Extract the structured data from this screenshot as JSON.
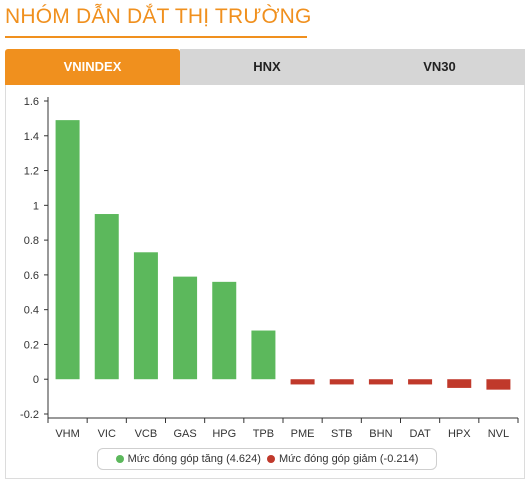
{
  "title": "NHÓM DẪN DẮT THỊ TRƯỜNG",
  "tabs": [
    {
      "label": "VNINDEX",
      "active": true
    },
    {
      "label": "HNX",
      "active": false
    },
    {
      "label": "VN30",
      "active": false
    }
  ],
  "colors": {
    "accent": "#f0901e",
    "positive": "#5cb85c",
    "negative": "#c0392b",
    "tab_inactive": "#d6d6d6"
  },
  "chart_data": {
    "type": "bar",
    "categories": [
      "VHM",
      "VIC",
      "VCB",
      "GAS",
      "HPG",
      "TPB",
      "PME",
      "STB",
      "BHN",
      "DAT",
      "HPX",
      "NVL"
    ],
    "values": [
      1.49,
      0.95,
      0.73,
      0.59,
      0.56,
      0.28,
      -0.03,
      -0.03,
      -0.03,
      -0.03,
      -0.05,
      -0.06
    ],
    "ylim": [
      -0.2,
      1.6
    ],
    "yticks": [
      "1.6",
      "1.4",
      "1.2",
      "1",
      "0.8",
      "0.6",
      "0.4",
      "0.2",
      "0",
      "-0.2"
    ],
    "ytick_values": [
      1.6,
      1.4,
      1.2,
      1.0,
      0.8,
      0.6,
      0.4,
      0.2,
      0,
      -0.2
    ],
    "grid": false,
    "legend_position": "bottom",
    "series": [
      {
        "name": "Mức đóng góp tăng (4.624)",
        "color": "#5cb85c"
      },
      {
        "name": "Mức đóng góp giảm (-0.214)",
        "color": "#c0392b"
      }
    ]
  }
}
